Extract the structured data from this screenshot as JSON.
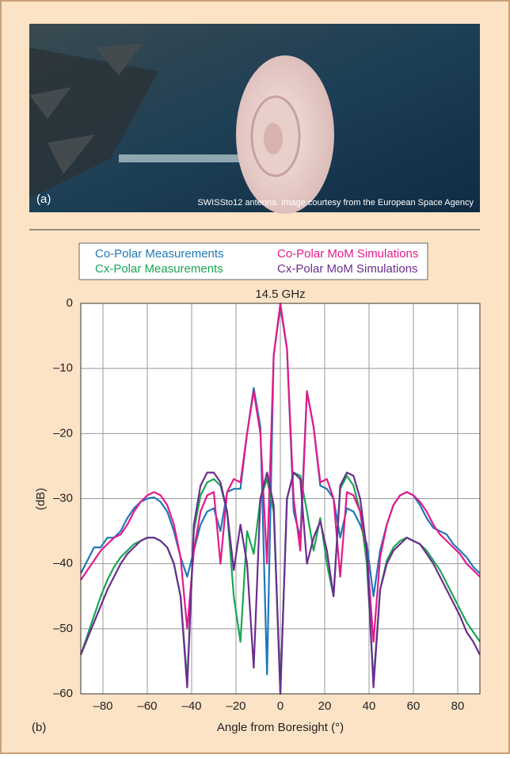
{
  "figure": {
    "photo_label": "(a)",
    "photo_caption": "SWISSto12 antenna. Image courtesy from the European Space Agency",
    "panel_label": "(b)"
  },
  "chart_data": {
    "type": "line",
    "title": "14.5 GHz",
    "x_label": "Angle from Boresight (°)",
    "y_label": "(dB)",
    "xlim": [
      -90,
      90
    ],
    "ylim": [
      -60,
      0
    ],
    "grid": true,
    "legend": "top",
    "xticks": [
      {
        "value": -80,
        "label": "–80"
      },
      {
        "value": -60,
        "label": "–60"
      },
      {
        "value": -40,
        "label": "–40"
      },
      {
        "value": -20,
        "label": "–20"
      },
      0,
      20,
      40,
      60,
      80
    ],
    "yticks": [
      0,
      {
        "value": -10,
        "label": "–10"
      },
      {
        "value": -20,
        "label": "–20"
      },
      {
        "value": -30,
        "label": "–30"
      },
      {
        "value": -40,
        "label": "–40"
      },
      {
        "value": -50,
        "label": "–50"
      },
      {
        "value": -60,
        "label": "–60"
      }
    ],
    "x": [
      -90,
      -87,
      -84,
      -81,
      -78,
      -75,
      -72,
      -69,
      -66,
      -63,
      -60,
      -57,
      -54,
      -51,
      -48,
      -45,
      -42,
      -39,
      -36,
      -33,
      -30,
      -27,
      -24,
      -21,
      -18,
      -15,
      -12,
      -9,
      -6,
      -3,
      0,
      3,
      6,
      9,
      12,
      15,
      18,
      21,
      24,
      27,
      30,
      33,
      36,
      39,
      42,
      45,
      48,
      51,
      54,
      57,
      60,
      63,
      66,
      69,
      72,
      75,
      78,
      81,
      84,
      87,
      90
    ],
    "series": [
      {
        "name": "Co-Polar Measurements",
        "color": "#1f78b8",
        "values": [
          -41.5,
          -39.5,
          -37.5,
          -37.5,
          -36,
          -36,
          -35,
          -33,
          -31.5,
          -30.5,
          -30,
          -29.8,
          -30.5,
          -32,
          -35,
          -39,
          -42,
          -38,
          -34,
          -32,
          -31.5,
          -35,
          -29,
          -28.5,
          -28.5,
          -20,
          -13,
          -19,
          -57,
          -8,
          -0.5,
          -7,
          -32,
          -36,
          -13.5,
          -19,
          -28,
          -28.5,
          -30,
          -36,
          -31.5,
          -32,
          -34,
          -37,
          -45,
          -38,
          -34,
          -31,
          -29.5,
          -29,
          -29.5,
          -31,
          -33,
          -34.5,
          -35,
          -35.5,
          -37,
          -38,
          -39,
          -40.5,
          -41.5
        ]
      },
      {
        "name": "Cx-Polar Measurements",
        "color": "#1aa653",
        "values": [
          -54,
          -51,
          -48,
          -45,
          -42.5,
          -40.5,
          -39,
          -38,
          -37,
          -36.5,
          -36,
          -36,
          -36.5,
          -37.5,
          -40,
          -45,
          -58,
          -35,
          -29.5,
          -27.5,
          -27,
          -28,
          -32,
          -45,
          -52,
          -35,
          -38.5,
          -30,
          -27,
          -32,
          -60,
          -30,
          -26,
          -26.5,
          -32,
          -38,
          -33,
          -40,
          -45,
          -28.5,
          -26.5,
          -28,
          -32,
          -40,
          -58,
          -44,
          -39.5,
          -37.5,
          -36.5,
          -36,
          -36.5,
          -37,
          -38,
          -39.5,
          -41,
          -43,
          -45,
          -47,
          -49,
          -50.5,
          -52
        ]
      },
      {
        "name": "Co-Polar MoM Simulations",
        "color": "#e5198b",
        "values": [
          -42.5,
          -41,
          -39.5,
          -38,
          -37,
          -36,
          -35.5,
          -34,
          -32,
          -30.5,
          -29.5,
          -29,
          -29.5,
          -31,
          -34,
          -39,
          -50,
          -38,
          -32,
          -29.5,
          -29,
          -40,
          -29,
          -27,
          -27.5,
          -20,
          -13.5,
          -20,
          -40,
          -8,
          0,
          -7,
          -30,
          -38,
          -13.5,
          -19,
          -27.5,
          -27,
          -30,
          -42,
          -29,
          -29.5,
          -32,
          -38,
          -52,
          -39,
          -34,
          -31,
          -29.5,
          -29,
          -29.5,
          -30.5,
          -32,
          -34,
          -35.5,
          -36.5,
          -37.5,
          -38.5,
          -40,
          -41,
          -42
        ]
      },
      {
        "name": "Cx-Polar MoM Simulations",
        "color": "#6b2d90",
        "values": [
          -54,
          -51.5,
          -49,
          -46.5,
          -44,
          -42,
          -40,
          -38.5,
          -37.5,
          -36.5,
          -36,
          -36,
          -36.5,
          -37.5,
          -40,
          -45,
          -59,
          -34,
          -28,
          -26,
          -26,
          -27.5,
          -32,
          -41,
          -34,
          -40,
          -56,
          -30,
          -26,
          -31,
          -60,
          -30,
          -26,
          -27,
          -40,
          -36,
          -33.5,
          -38,
          -45,
          -28,
          -26,
          -26.5,
          -30,
          -38,
          -59,
          -44,
          -40,
          -38,
          -37,
          -36,
          -36.5,
          -37,
          -38.5,
          -40,
          -42,
          -44,
          -46,
          -48,
          -50.5,
          -52,
          -54
        ]
      }
    ]
  }
}
